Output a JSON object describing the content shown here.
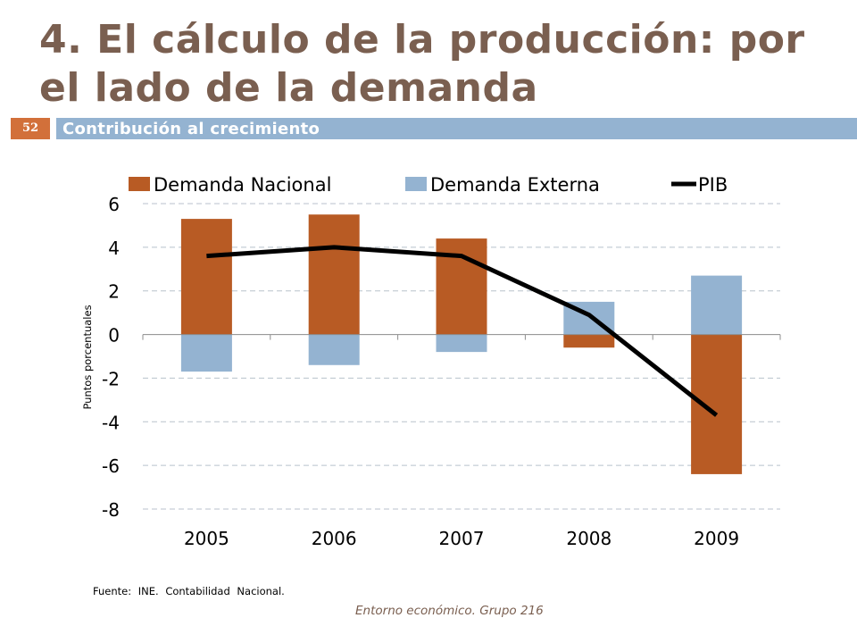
{
  "slide": {
    "title": "4. El cálculo de la producción: por el lado de la demanda",
    "number": "52",
    "subtitle": "Contribución al crecimiento",
    "source": "Fuente: INE. Contabilidad Nacional.",
    "footer": "Entorno económico. Grupo 216"
  },
  "colors": {
    "title": "#7a5f50",
    "banner": "#94b3d1",
    "number_box": "#d2703a",
    "demanda_nacional": "#b85b24",
    "demanda_externa": "#94b3d1",
    "pib": "#000000",
    "grid": "#b8c2cc"
  },
  "chart_data": {
    "type": "bar",
    "stacked": true,
    "title": "",
    "xlabel": "",
    "ylabel": "Puntos porcentuales",
    "categories": [
      "2005",
      "2006",
      "2007",
      "2008",
      "2009"
    ],
    "ylim": [
      -8,
      6
    ],
    "yticks": [
      6,
      4,
      2,
      0,
      -2,
      -4,
      -6,
      -8
    ],
    "grid": true,
    "legend_position": "top",
    "series": [
      {
        "name": "Demanda Nacional",
        "kind": "bar",
        "values": [
          5.3,
          5.5,
          4.4,
          -0.6,
          -6.4
        ]
      },
      {
        "name": "Demanda Externa",
        "kind": "bar",
        "values": [
          -1.7,
          -1.4,
          -0.8,
          1.5,
          2.7
        ]
      },
      {
        "name": "PIB",
        "kind": "line",
        "values": [
          3.6,
          4.0,
          3.6,
          0.9,
          -3.7
        ]
      }
    ]
  }
}
